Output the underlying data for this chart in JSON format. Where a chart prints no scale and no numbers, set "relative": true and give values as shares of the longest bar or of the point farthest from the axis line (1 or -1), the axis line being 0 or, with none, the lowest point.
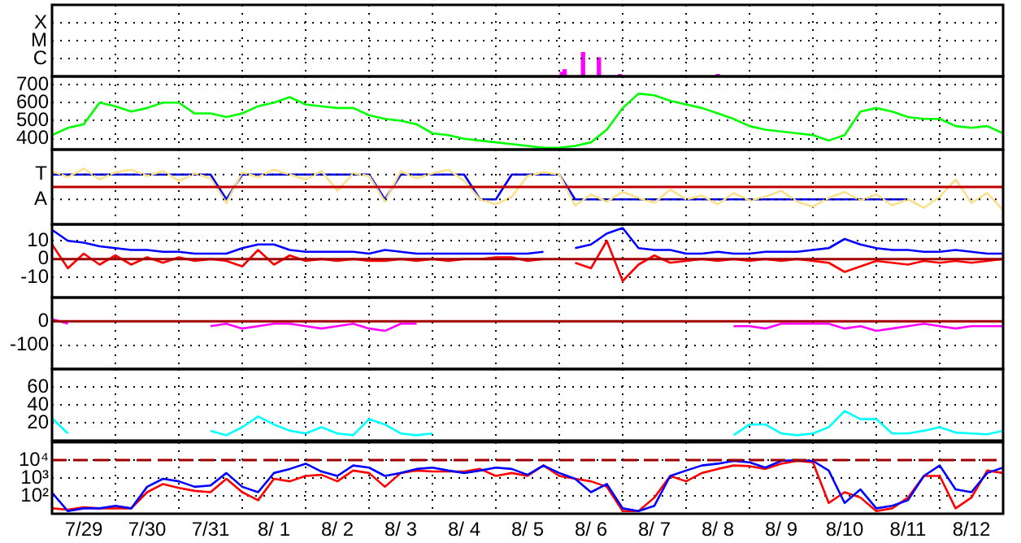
{
  "chart_data": [
    {
      "type": "bar",
      "x": [
        "--08-06T01:00",
        "--08-06T02:00",
        "--08-06T09:00",
        "--08-06T15:00",
        "--08-06T23:00",
        "--08-08T12:00"
      ],
      "series": [
        {
          "color": "#ff00ff",
          "values": [
            0.17,
            0.28,
            1,
            0.78,
            0.08,
            0.08
          ]
        }
      ],
      "relative": true,
      "annotations": [
        "X",
        "M",
        "C"
      ],
      "xlim": [
        "--07-29T00:00",
        "--08-13T00:00"
      ],
      "xticks": [
        {
          "value": "--07-29T00:00",
          "label": null
        },
        {
          "value": "--07-30T00:00",
          "label": null
        },
        {
          "value": "--07-31T00:00",
          "label": null
        },
        {
          "value": "--08-01T00:00",
          "label": null
        },
        {
          "value": "--08-02T00:00",
          "label": null
        },
        {
          "value": "--08-03T00:00",
          "label": null
        },
        {
          "value": "--08-04T00:00",
          "label": null
        },
        {
          "value": "--08-05T00:00",
          "label": null
        },
        {
          "value": "--08-06T00:00",
          "label": null
        },
        {
          "value": "--08-07T00:00",
          "label": null
        },
        {
          "value": "--08-08T00:00",
          "label": null
        },
        {
          "value": "--08-09T00:00",
          "label": null
        },
        {
          "value": "--08-10T00:00",
          "label": null
        },
        {
          "value": "--08-11T00:00",
          "label": null
        },
        {
          "value": "--08-12T00:00",
          "label": null
        },
        {
          "value": "--08-13T00:00",
          "label": null
        }
      ],
      "grid": true,
      "tick_labels": "y"
    },
    {
      "type": "line",
      "x": [
        "--07-29T00:00",
        "--07-29T06:00",
        "--07-29T12:00",
        "--07-29T18:00",
        "--07-30T00:00",
        "--07-30T06:00",
        "--07-30T12:00",
        "--07-30T18:00",
        "--07-31T00:00",
        "--07-31T06:00",
        "--07-31T12:00",
        "--07-31T18:00",
        "--08-01T00:00",
        "--08-01T06:00",
        "--08-01T12:00",
        "--08-01T18:00",
        "--08-02T00:00",
        "--08-02T06:00",
        "--08-02T12:00",
        "--08-02T18:00",
        "--08-03T00:00",
        "--08-03T06:00",
        "--08-03T12:00",
        "--08-03T18:00",
        "--08-04T00:00",
        "--08-04T06:00",
        "--08-04T12:00",
        "--08-04T18:00",
        "--08-05T00:00",
        "--08-05T06:00",
        "--08-05T12:00",
        "--08-05T18:00",
        "--08-06T00:00",
        "--08-06T06:00",
        "--08-06T12:00",
        "--08-06T18:00",
        "--08-07T00:00",
        "--08-07T06:00",
        "--08-07T12:00",
        "--08-07T18:00",
        "--08-08T00:00",
        "--08-08T06:00",
        "--08-08T12:00",
        "--08-08T18:00",
        "--08-09T00:00",
        "--08-09T06:00",
        "--08-09T12:00",
        "--08-09T18:00",
        "--08-10T00:00",
        "--08-10T06:00",
        "--08-10T12:00",
        "--08-10T18:00",
        "--08-11T00:00",
        "--08-11T06:00",
        "--08-11T12:00",
        "--08-11T18:00",
        "--08-12T00:00",
        "--08-12T06:00",
        "--08-12T12:00",
        "--08-12T18:00",
        "--08-13T00:00"
      ],
      "series": [
        {
          "color": "#00ff00",
          "values": [
            420,
            460,
            480,
            600,
            580,
            550,
            570,
            600,
            600,
            540,
            540,
            520,
            540,
            580,
            600,
            630,
            590,
            580,
            570,
            570,
            530,
            510,
            500,
            480,
            430,
            420,
            400,
            390,
            380,
            370,
            360,
            350,
            350,
            360,
            380,
            450,
            570,
            650,
            640,
            610,
            590,
            570,
            540,
            510,
            470,
            450,
            440,
            430,
            420,
            390,
            420,
            550,
            570,
            550,
            520,
            510,
            510,
            470,
            460,
            470,
            430
          ]
        }
      ],
      "xlim": [
        "--07-29T00:00",
        "--08-13T00:00"
      ],
      "xticks": [
        {
          "value": "--07-29T00:00",
          "label": null
        },
        {
          "value": "--07-30T00:00",
          "label": null
        },
        {
          "value": "--07-31T00:00",
          "label": null
        },
        {
          "value": "--08-01T00:00",
          "label": null
        },
        {
          "value": "--08-02T00:00",
          "label": null
        },
        {
          "value": "--08-03T00:00",
          "label": null
        },
        {
          "value": "--08-04T00:00",
          "label": null
        },
        {
          "value": "--08-05T00:00",
          "label": null
        },
        {
          "value": "--08-06T00:00",
          "label": null
        },
        {
          "value": "--08-07T00:00",
          "label": null
        },
        {
          "value": "--08-08T00:00",
          "label": null
        },
        {
          "value": "--08-09T00:00",
          "label": null
        },
        {
          "value": "--08-10T00:00",
          "label": null
        },
        {
          "value": "--08-11T00:00",
          "label": null
        },
        {
          "value": "--08-12T00:00",
          "label": null
        },
        {
          "value": "--08-13T00:00",
          "label": null
        }
      ],
      "ylim": [
        340,
        745
      ],
      "yticks": [
        400,
        500,
        600,
        700
      ],
      "marker": "none",
      "grid": true,
      "tick_labels": "y"
    },
    {
      "type": "line",
      "x": [
        "--07-29T00:00",
        "--07-29T06:00",
        "--07-29T12:00",
        "--07-29T18:00",
        "--07-30T00:00",
        "--07-30T06:00",
        "--07-30T12:00",
        "--07-30T18:00",
        "--07-31T00:00",
        "--07-31T06:00",
        "--07-31T12:00",
        "--07-31T18:00",
        "--08-01T00:00",
        "--08-01T06:00",
        "--08-01T12:00",
        "--08-01T18:00",
        "--08-02T00:00",
        "--08-02T06:00",
        "--08-02T12:00",
        "--08-02T18:00",
        "--08-03T00:00",
        "--08-03T06:00",
        "--08-03T12:00",
        "--08-03T18:00",
        "--08-04T00:00",
        "--08-04T06:00",
        "--08-04T12:00",
        "--08-04T18:00",
        "--08-05T00:00",
        "--08-05T06:00",
        "--08-05T12:00",
        "--08-05T18:00",
        "--08-06T00:00",
        "--08-06T06:00",
        "--08-06T12:00",
        "--08-06T18:00",
        "--08-07T00:00",
        "--08-07T06:00",
        "--08-07T12:00",
        "--08-07T18:00",
        "--08-08T00:00",
        "--08-08T06:00",
        "--08-08T12:00",
        "--08-08T18:00",
        "--08-09T00:00",
        "--08-09T06:00",
        "--08-09T12:00",
        "--08-09T18:00",
        "--08-10T00:00",
        "--08-10T06:00",
        "--08-10T12:00",
        "--08-10T18:00",
        "--08-11T00:00",
        "--08-11T06:00",
        "--08-11T12:00",
        "--08-11T18:00",
        "--08-12T00:00",
        "--08-12T06:00",
        "--08-12T12:00",
        "--08-12T18:00",
        "--08-13T00:00"
      ],
      "relative": true,
      "annotations": [
        "T",
        "A"
      ],
      "series": [
        {
          "color": "#f8e08c",
          "values": [
            0.68,
            0.42,
            0.79,
            0.32,
            0.63,
            0.74,
            0.47,
            0.68,
            0.26,
            0.58,
            0.37,
            -0.68,
            0.63,
            0.42,
            0.74,
            0.53,
            0.32,
            0.68,
            -0.16,
            0.58,
            0.47,
            -0.63,
            0.68,
            0.37,
            0.58,
            0.74,
            0.26,
            -0.53,
            -0.74,
            -0.42,
            0.47,
            0.63,
            0.53,
            -0.79,
            -0.32,
            -0.63,
            -0.21,
            -0.47,
            -0.68,
            -0.11,
            -0.53,
            -0.37,
            -0.74,
            -0.26,
            -0.58,
            -0.42,
            -0.16,
            -0.63,
            -0.84,
            -0.47,
            -0.21,
            -0.58,
            -0.32,
            -0.79,
            -0.53,
            -0.89,
            -0.42,
            0.32,
            -0.68,
            -0.26,
            -1
          ]
        },
        {
          "color": "#0000ff",
          "values": [
            0.53,
            0.53,
            0.53,
            0.53,
            0.53,
            0.53,
            0.53,
            0.53,
            0.53,
            0.53,
            0.53,
            -0.53,
            0.53,
            0.53,
            0.53,
            0.53,
            0.53,
            0.53,
            0.53,
            0.53,
            0.53,
            -0.53,
            0.53,
            0.53,
            0.53,
            0.53,
            0.53,
            -0.53,
            -0.53,
            0.53,
            0.53,
            0.53,
            0.53,
            -0.53,
            -0.53,
            -0.53,
            -0.53,
            -0.53,
            -0.53,
            -0.53,
            -0.53,
            -0.53,
            -0.53,
            -0.53,
            -0.53,
            -0.53,
            -0.53,
            -0.53,
            -0.53,
            -0.53,
            -0.53,
            -0.53,
            -0.53,
            -0.53,
            -0.53,
            null,
            null,
            null,
            null,
            null,
            null
          ]
        }
      ],
      "xlim": [
        "--07-29T00:00",
        "--08-13T00:00"
      ],
      "xticks": [
        {
          "value": "--07-29T00:00",
          "label": null
        },
        {
          "value": "--07-30T00:00",
          "label": null
        },
        {
          "value": "--07-31T00:00",
          "label": null
        },
        {
          "value": "--08-01T00:00",
          "label": null
        },
        {
          "value": "--08-02T00:00",
          "label": null
        },
        {
          "value": "--08-03T00:00",
          "label": null
        },
        {
          "value": "--08-04T00:00",
          "label": null
        },
        {
          "value": "--08-05T00:00",
          "label": null
        },
        {
          "value": "--08-06T00:00",
          "label": null
        },
        {
          "value": "--08-07T00:00",
          "label": null
        },
        {
          "value": "--08-08T00:00",
          "label": null
        },
        {
          "value": "--08-09T00:00",
          "label": null
        },
        {
          "value": "--08-10T00:00",
          "label": null
        },
        {
          "value": "--08-11T00:00",
          "label": null
        },
        {
          "value": "--08-12T00:00",
          "label": null
        },
        {
          "value": "--08-13T00:00",
          "label": null
        }
      ],
      "ref_lines": [
        {
          "axis": "y",
          "value": 0,
          "color": "#c00000"
        }
      ],
      "marker": "none",
      "grid": true,
      "tick_labels": "y"
    },
    {
      "type": "line",
      "x": [
        "--07-29T00:00",
        "--07-29T06:00",
        "--07-29T12:00",
        "--07-29T18:00",
        "--07-30T00:00",
        "--07-30T06:00",
        "--07-30T12:00",
        "--07-30T18:00",
        "--07-31T00:00",
        "--07-31T06:00",
        "--07-31T12:00",
        "--07-31T18:00",
        "--08-01T00:00",
        "--08-01T06:00",
        "--08-01T12:00",
        "--08-01T18:00",
        "--08-02T00:00",
        "--08-02T06:00",
        "--08-02T12:00",
        "--08-02T18:00",
        "--08-03T00:00",
        "--08-03T06:00",
        "--08-03T12:00",
        "--08-03T18:00",
        "--08-04T00:00",
        "--08-04T06:00",
        "--08-04T12:00",
        "--08-04T18:00",
        "--08-05T00:00",
        "--08-05T06:00",
        "--08-05T12:00",
        "--08-05T18:00",
        "--08-06T00:00",
        "--08-06T06:00",
        "--08-06T12:00",
        "--08-06T18:00",
        "--08-07T00:00",
        "--08-07T06:00",
        "--08-07T12:00",
        "--08-07T18:00",
        "--08-08T00:00",
        "--08-08T06:00",
        "--08-08T12:00",
        "--08-08T18:00",
        "--08-09T00:00",
        "--08-09T06:00",
        "--08-09T12:00",
        "--08-09T18:00",
        "--08-10T00:00",
        "--08-10T06:00",
        "--08-10T12:00",
        "--08-10T18:00",
        "--08-11T00:00",
        "--08-11T06:00",
        "--08-11T12:00",
        "--08-11T18:00",
        "--08-12T00:00",
        "--08-12T06:00",
        "--08-12T12:00",
        "--08-12T18:00",
        "--08-13T00:00"
      ],
      "series": [
        {
          "color": "#0000ff",
          "values": [
            16,
            10,
            9,
            7,
            6,
            5,
            5,
            4,
            4,
            3,
            3,
            3,
            6,
            8,
            8,
            5,
            4,
            4,
            4,
            4,
            3,
            5,
            4,
            3,
            3,
            3,
            3,
            3,
            3,
            3,
            3,
            4,
            null,
            6,
            8,
            14,
            17,
            6,
            5,
            5,
            3,
            3,
            4,
            3,
            3,
            4,
            4,
            4,
            5,
            6,
            11,
            8,
            6,
            5,
            5,
            4,
            4,
            5,
            4,
            3,
            3
          ]
        },
        {
          "color": "#ff0000",
          "values": [
            8,
            -5,
            3,
            -3,
            2,
            -3,
            1,
            -2,
            1,
            -1,
            0,
            -1,
            -4,
            5,
            -3,
            2,
            -1,
            0,
            -1,
            0,
            -1,
            -1,
            0,
            -1,
            0,
            -1,
            0,
            0,
            1,
            1,
            -1,
            0,
            null,
            -2,
            -5,
            10,
            -12,
            -3,
            2,
            -2,
            -1,
            0,
            -1,
            0,
            -1,
            0,
            -1,
            0,
            -1,
            -2,
            -7,
            -4,
            -1,
            -2,
            -3,
            -1,
            -2,
            -1,
            -2,
            -1,
            0
          ]
        }
      ],
      "xlim": [
        "--07-29T00:00",
        "--08-13T00:00"
      ],
      "xticks": [
        {
          "value": "--07-29T00:00",
          "label": null
        },
        {
          "value": "--07-30T00:00",
          "label": null
        },
        {
          "value": "--07-31T00:00",
          "label": null
        },
        {
          "value": "--08-01T00:00",
          "label": null
        },
        {
          "value": "--08-02T00:00",
          "label": null
        },
        {
          "value": "--08-03T00:00",
          "label": null
        },
        {
          "value": "--08-04T00:00",
          "label": null
        },
        {
          "value": "--08-05T00:00",
          "label": null
        },
        {
          "value": "--08-06T00:00",
          "label": null
        },
        {
          "value": "--08-07T00:00",
          "label": null
        },
        {
          "value": "--08-08T00:00",
          "label": null
        },
        {
          "value": "--08-09T00:00",
          "label": null
        },
        {
          "value": "--08-10T00:00",
          "label": null
        },
        {
          "value": "--08-11T00:00",
          "label": null
        },
        {
          "value": "--08-12T00:00",
          "label": null
        },
        {
          "value": "--08-13T00:00",
          "label": null
        }
      ],
      "ylim": [
        -21,
        19
      ],
      "yticks": [
        -10,
        0,
        10
      ],
      "ref_lines": [
        {
          "axis": "y",
          "value": 0,
          "color": "#a00000"
        }
      ],
      "marker": "none",
      "grid": true,
      "tick_labels": "y"
    },
    {
      "type": "line",
      "x": [
        "--07-29T00:00",
        "--07-29T06:00",
        "--07-29T12:00",
        "--07-29T18:00",
        "--07-30T00:00",
        "--07-30T06:00",
        "--07-30T12:00",
        "--07-30T18:00",
        "--07-31T00:00",
        "--07-31T06:00",
        "--07-31T12:00",
        "--07-31T18:00",
        "--08-01T00:00",
        "--08-01T06:00",
        "--08-01T12:00",
        "--08-01T18:00",
        "--08-02T00:00",
        "--08-02T06:00",
        "--08-02T12:00",
        "--08-02T18:00",
        "--08-03T00:00",
        "--08-03T06:00",
        "--08-03T12:00",
        "--08-03T18:00",
        "--08-04T00:00",
        "--08-04T06:00",
        "--08-04T12:00",
        "--08-04T18:00",
        "--08-05T00:00",
        "--08-05T06:00",
        "--08-05T12:00",
        "--08-05T18:00",
        "--08-06T00:00",
        "--08-06T06:00",
        "--08-06T12:00",
        "--08-06T18:00",
        "--08-07T00:00",
        "--08-07T06:00",
        "--08-07T12:00",
        "--08-07T18:00",
        "--08-08T00:00",
        "--08-08T06:00",
        "--08-08T12:00",
        "--08-08T18:00",
        "--08-09T00:00",
        "--08-09T06:00",
        "--08-09T12:00",
        "--08-09T18:00",
        "--08-10T00:00",
        "--08-10T06:00",
        "--08-10T12:00",
        "--08-10T18:00",
        "--08-11T00:00",
        "--08-11T06:00",
        "--08-11T12:00",
        "--08-11T18:00",
        "--08-12T00:00",
        "--08-12T06:00",
        "--08-12T12:00",
        "--08-12T18:00",
        "--08-13T00:00"
      ],
      "series": [
        {
          "color": "#ff00ff",
          "values": [
            10,
            -10,
            null,
            null,
            null,
            null,
            null,
            null,
            null,
            null,
            -20,
            -10,
            -30,
            -20,
            -10,
            -10,
            -20,
            -30,
            -20,
            -10,
            -30,
            -40,
            -10,
            -10,
            null,
            null,
            null,
            null,
            null,
            null,
            null,
            null,
            null,
            null,
            null,
            null,
            null,
            null,
            null,
            null,
            null,
            null,
            null,
            -20,
            -20,
            -30,
            -10,
            -10,
            -10,
            -10,
            -30,
            -20,
            -40,
            -30,
            -20,
            -10,
            -20,
            -30,
            -20,
            -20,
            -20
          ]
        }
      ],
      "xlim": [
        "--07-29T00:00",
        "--08-13T00:00"
      ],
      "xticks": [
        {
          "value": "--07-29T00:00",
          "label": null
        },
        {
          "value": "--07-30T00:00",
          "label": null
        },
        {
          "value": "--07-31T00:00",
          "label": null
        },
        {
          "value": "--08-01T00:00",
          "label": null
        },
        {
          "value": "--08-02T00:00",
          "label": null
        },
        {
          "value": "--08-03T00:00",
          "label": null
        },
        {
          "value": "--08-04T00:00",
          "label": null
        },
        {
          "value": "--08-05T00:00",
          "label": null
        },
        {
          "value": "--08-06T00:00",
          "label": null
        },
        {
          "value": "--08-07T00:00",
          "label": null
        },
        {
          "value": "--08-08T00:00",
          "label": null
        },
        {
          "value": "--08-09T00:00",
          "label": null
        },
        {
          "value": "--08-10T00:00",
          "label": null
        },
        {
          "value": "--08-11T00:00",
          "label": null
        },
        {
          "value": "--08-12T00:00",
          "label": null
        },
        {
          "value": "--08-13T00:00",
          "label": null
        }
      ],
      "ylim": [
        -200,
        100
      ],
      "yticks": [
        -100,
        0
      ],
      "ref_lines": [
        {
          "axis": "y",
          "value": 0,
          "color": "#a00000"
        }
      ],
      "marker": "none",
      "grid": true,
      "tick_labels": "y"
    },
    {
      "type": "line",
      "x": [
        "--07-29T00:00",
        "--07-29T06:00",
        "--07-29T12:00",
        "--07-29T18:00",
        "--07-30T00:00",
        "--07-30T06:00",
        "--07-30T12:00",
        "--07-30T18:00",
        "--07-31T00:00",
        "--07-31T06:00",
        "--07-31T12:00",
        "--07-31T18:00",
        "--08-01T00:00",
        "--08-01T06:00",
        "--08-01T12:00",
        "--08-01T18:00",
        "--08-02T00:00",
        "--08-02T06:00",
        "--08-02T12:00",
        "--08-02T18:00",
        "--08-03T00:00",
        "--08-03T06:00",
        "--08-03T12:00",
        "--08-03T18:00",
        "--08-04T00:00",
        "--08-04T06:00",
        "--08-04T12:00",
        "--08-04T18:00",
        "--08-05T00:00",
        "--08-05T06:00",
        "--08-05T12:00",
        "--08-05T18:00",
        "--08-06T00:00",
        "--08-06T06:00",
        "--08-06T12:00",
        "--08-06T18:00",
        "--08-07T00:00",
        "--08-07T06:00",
        "--08-07T12:00",
        "--08-07T18:00",
        "--08-08T00:00",
        "--08-08T06:00",
        "--08-08T12:00",
        "--08-08T18:00",
        "--08-09T00:00",
        "--08-09T06:00",
        "--08-09T12:00",
        "--08-09T18:00",
        "--08-10T00:00",
        "--08-10T06:00",
        "--08-10T12:00",
        "--08-10T18:00",
        "--08-11T00:00",
        "--08-11T06:00",
        "--08-11T12:00",
        "--08-11T18:00",
        "--08-12T00:00",
        "--08-12T06:00",
        "--08-12T12:00",
        "--08-12T18:00",
        "--08-13T00:00"
      ],
      "series": [
        {
          "color": "#00ffff",
          "values": [
            25,
            8,
            null,
            null,
            null,
            null,
            null,
            null,
            null,
            null,
            11,
            6,
            15,
            27,
            18,
            11,
            8,
            15,
            8,
            6,
            24,
            18,
            8,
            6,
            8,
            null,
            null,
            null,
            null,
            null,
            null,
            null,
            null,
            null,
            null,
            null,
            null,
            null,
            null,
            null,
            null,
            null,
            null,
            6,
            18,
            18,
            8,
            6,
            8,
            15,
            33,
            24,
            24,
            8,
            8,
            11,
            15,
            9,
            8,
            7,
            11
          ]
        }
      ],
      "xlim": [
        "--07-29T00:00",
        "--08-13T00:00"
      ],
      "xticks": [
        {
          "value": "--07-29T00:00",
          "label": null
        },
        {
          "value": "--07-30T00:00",
          "label": null
        },
        {
          "value": "--07-31T00:00",
          "label": null
        },
        {
          "value": "--08-01T00:00",
          "label": null
        },
        {
          "value": "--08-02T00:00",
          "label": null
        },
        {
          "value": "--08-03T00:00",
          "label": null
        },
        {
          "value": "--08-04T00:00",
          "label": null
        },
        {
          "value": "--08-05T00:00",
          "label": null
        },
        {
          "value": "--08-06T00:00",
          "label": null
        },
        {
          "value": "--08-07T00:00",
          "label": null
        },
        {
          "value": "--08-08T00:00",
          "label": null
        },
        {
          "value": "--08-09T00:00",
          "label": null
        },
        {
          "value": "--08-10T00:00",
          "label": null
        },
        {
          "value": "--08-11T00:00",
          "label": null
        },
        {
          "value": "--08-12T00:00",
          "label": null
        },
        {
          "value": "--08-13T00:00",
          "label": null
        }
      ],
      "ylim": [
        0,
        80
      ],
      "yticks": [
        20,
        40,
        60
      ],
      "marker": "none",
      "grid": true,
      "tick_labels": "y"
    },
    {
      "type": "line",
      "x": [
        "--07-29T00:00",
        "--07-29T06:00",
        "--07-29T12:00",
        "--07-29T18:00",
        "--07-30T00:00",
        "--07-30T06:00",
        "--07-30T12:00",
        "--07-30T18:00",
        "--07-31T00:00",
        "--07-31T06:00",
        "--07-31T12:00",
        "--07-31T18:00",
        "--08-01T00:00",
        "--08-01T06:00",
        "--08-01T12:00",
        "--08-01T18:00",
        "--08-02T00:00",
        "--08-02T06:00",
        "--08-02T12:00",
        "--08-02T18:00",
        "--08-03T00:00",
        "--08-03T06:00",
        "--08-03T12:00",
        "--08-03T18:00",
        "--08-04T00:00",
        "--08-04T06:00",
        "--08-04T12:00",
        "--08-04T18:00",
        "--08-05T00:00",
        "--08-05T06:00",
        "--08-05T12:00",
        "--08-05T18:00",
        "--08-06T00:00",
        "--08-06T06:00",
        "--08-06T12:00",
        "--08-06T18:00",
        "--08-07T00:00",
        "--08-07T06:00",
        "--08-07T12:00",
        "--08-07T18:00",
        "--08-08T00:00",
        "--08-08T06:00",
        "--08-08T12:00",
        "--08-08T18:00",
        "--08-09T00:00",
        "--08-09T06:00",
        "--08-09T12:00",
        "--08-09T18:00",
        "--08-10T00:00",
        "--08-10T06:00",
        "--08-10T12:00",
        "--08-10T18:00",
        "--08-11T00:00",
        "--08-11T06:00",
        "--08-11T12:00",
        "--08-11T18:00",
        "--08-12T00:00",
        "--08-12T06:00",
        "--08-12T12:00",
        "--08-12T18:00",
        "--08-13T00:00"
      ],
      "series": [
        {
          "color": "#0000ff",
          "values": [
            150,
            14,
            20,
            20,
            28,
            20,
            320,
            900,
            650,
            320,
            380,
            1900,
            320,
            160,
            1900,
            3200,
            6300,
            2300,
            1300,
            5000,
            3800,
            1300,
            1900,
            3200,
            3800,
            2600,
            1900,
            2600,
            3800,
            3200,
            1500,
            5000,
            1900,
            900,
            160,
            460,
            20,
            14,
            28,
            1300,
            2600,
            5000,
            6300,
            9000,
            7500,
            3800,
            9000,
            10000,
            9000,
            2600,
            40,
            230,
            20,
            28,
            57,
            1300,
            5000,
            230,
            160,
            1900,
            3800
          ]
        },
        {
          "color": "#ff0000",
          "values": [
            20,
            17,
            23,
            20,
            20,
            20,
            160,
            460,
            280,
            190,
            160,
            900,
            160,
            57,
            900,
            650,
            1300,
            1500,
            650,
            2600,
            1900,
            320,
            1900,
            2600,
            2300,
            2300,
            2300,
            3200,
            1300,
            1900,
            1300,
            5000,
            1300,
            900,
            650,
            320,
            14,
            14,
            80,
            1300,
            650,
            1900,
            3200,
            5000,
            4600,
            3200,
            6300,
            9000,
            7500,
            40,
            160,
            80,
            14,
            20,
            80,
            1300,
            1300,
            20,
            80,
            2600,
            1900
          ]
        }
      ],
      "xlim": [
        "--07-29T00:00",
        "--08-13T00:00"
      ],
      "xticks": [
        {
          "value": "--07-29T00:00",
          "label": null
        },
        {
          "value": "--07-30T00:00",
          "label": null
        },
        {
          "value": "--07-31T00:00",
          "label": null
        },
        {
          "value": "--08-01T00:00",
          "label": null
        },
        {
          "value": "--08-02T00:00",
          "label": null
        },
        {
          "value": "--08-03T00:00",
          "label": null
        },
        {
          "value": "--08-04T00:00",
          "label": null
        },
        {
          "value": "--08-05T00:00",
          "label": null
        },
        {
          "value": "--08-06T00:00",
          "label": null
        },
        {
          "value": "--08-07T00:00",
          "label": null
        },
        {
          "value": "--08-08T00:00",
          "label": null
        },
        {
          "value": "--08-09T00:00",
          "label": null
        },
        {
          "value": "--08-10T00:00",
          "label": null
        },
        {
          "value": "--08-11T00:00",
          "label": null
        },
        {
          "value": "--08-12T00:00",
          "label": null
        },
        {
          "value": "--08-13T00:00",
          "label": null
        },
        {
          "value": "--07-29T12:00",
          "label": "7/29"
        },
        {
          "value": "--07-30T12:00",
          "label": "7/30"
        },
        {
          "value": "--07-31T12:00",
          "label": "7/31"
        },
        {
          "value": "--08-01T12:00",
          "label": "8/ 1"
        },
        {
          "value": "--08-02T12:00",
          "label": "8/ 2"
        },
        {
          "value": "--08-03T12:00",
          "label": "8/ 3"
        },
        {
          "value": "--08-04T12:00",
          "label": "8/ 4"
        },
        {
          "value": "--08-05T12:00",
          "label": "8/ 5"
        },
        {
          "value": "--08-06T12:00",
          "label": "8/ 6"
        },
        {
          "value": "--08-07T12:00",
          "label": "8/ 7"
        },
        {
          "value": "--08-08T12:00",
          "label": "8/ 8"
        },
        {
          "value": "--08-09T12:00",
          "label": "8/ 9"
        },
        {
          "value": "--08-10T12:00",
          "label": "8/10"
        },
        {
          "value": "--08-11T12:00",
          "label": "8/11"
        },
        {
          "value": "--08-12T12:00",
          "label": "8/12"
        }
      ],
      "ylim": [
        10,
        100000
      ],
      "yticks": [
        {
          "value": 100,
          "label": "10²"
        },
        {
          "value": 1000,
          "label": "10³"
        },
        {
          "value": 10000,
          "label": "10⁴"
        }
      ],
      "ref_lines": [
        {
          "axis": "y",
          "value": 10000,
          "color": "#a00000",
          "line_style": "dashed"
        }
      ],
      "log": "y",
      "marker": "none",
      "grid": true
    }
  ]
}
